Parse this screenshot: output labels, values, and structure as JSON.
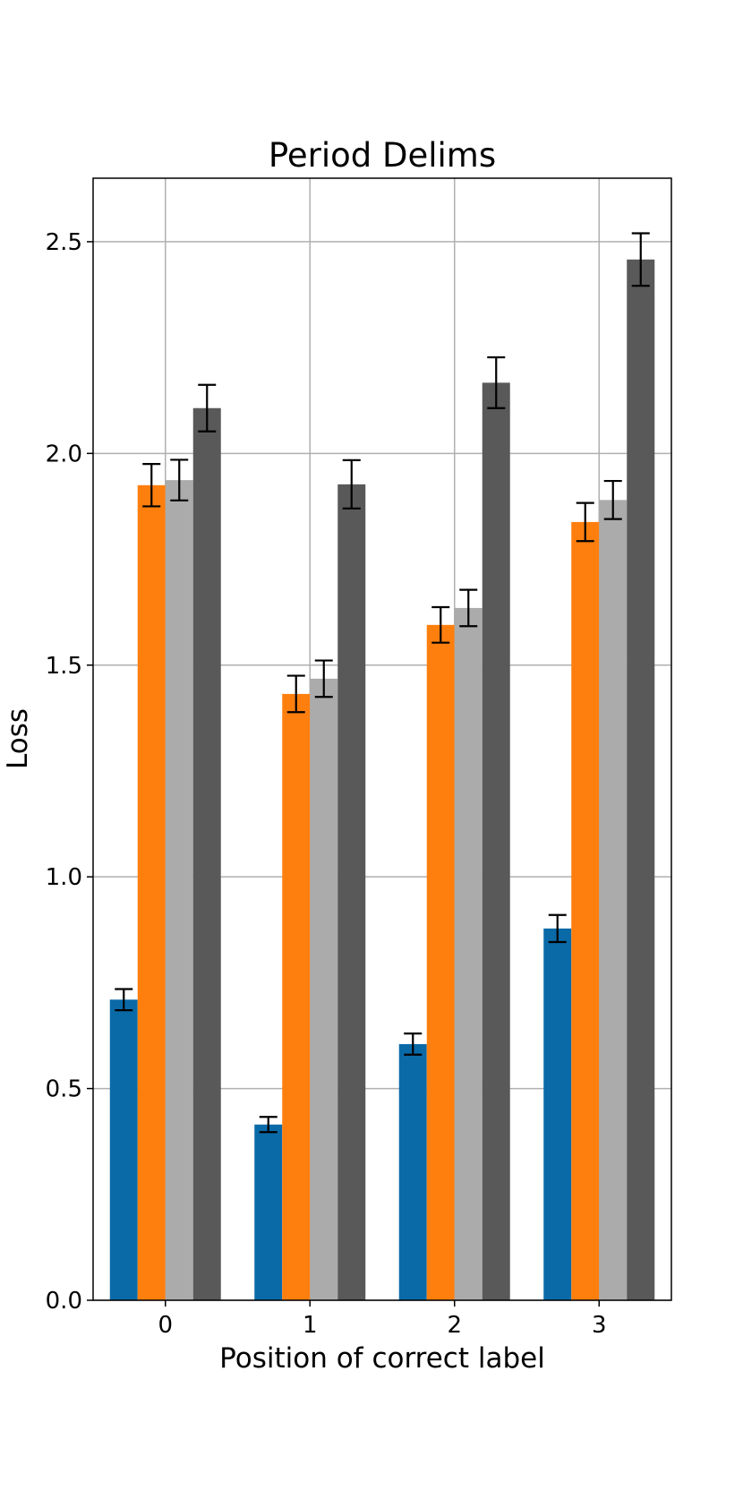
{
  "chart_data": {
    "type": "bar",
    "title": "Period Delims",
    "xlabel": "Position of correct label",
    "ylabel": "Loss",
    "categories": [
      "0",
      "1",
      "2",
      "3"
    ],
    "ylim": [
      0,
      2.65
    ],
    "yticks": [
      0.0,
      0.5,
      1.0,
      1.5,
      2.0,
      2.5
    ],
    "ytick_labels": [
      "0.0",
      "0.5",
      "1.0",
      "1.5",
      "2.0",
      "2.5"
    ],
    "grid": true,
    "legend": "none",
    "series": [
      {
        "color": "#0a6aa8",
        "values": [
          0.71,
          0.415,
          0.605,
          0.878
        ],
        "errors": [
          0.025,
          0.018,
          0.025,
          0.032
        ]
      },
      {
        "color": "#ff7f0e",
        "values": [
          1.925,
          1.432,
          1.595,
          1.838
        ],
        "errors": [
          0.05,
          0.043,
          0.042,
          0.045
        ]
      },
      {
        "color": "#ababab",
        "values": [
          1.937,
          1.468,
          1.635,
          1.89
        ],
        "errors": [
          0.048,
          0.043,
          0.043,
          0.045
        ]
      },
      {
        "color": "#595959",
        "values": [
          2.107,
          1.927,
          2.167,
          2.458
        ],
        "errors": [
          0.055,
          0.057,
          0.06,
          0.062
        ]
      }
    ]
  }
}
